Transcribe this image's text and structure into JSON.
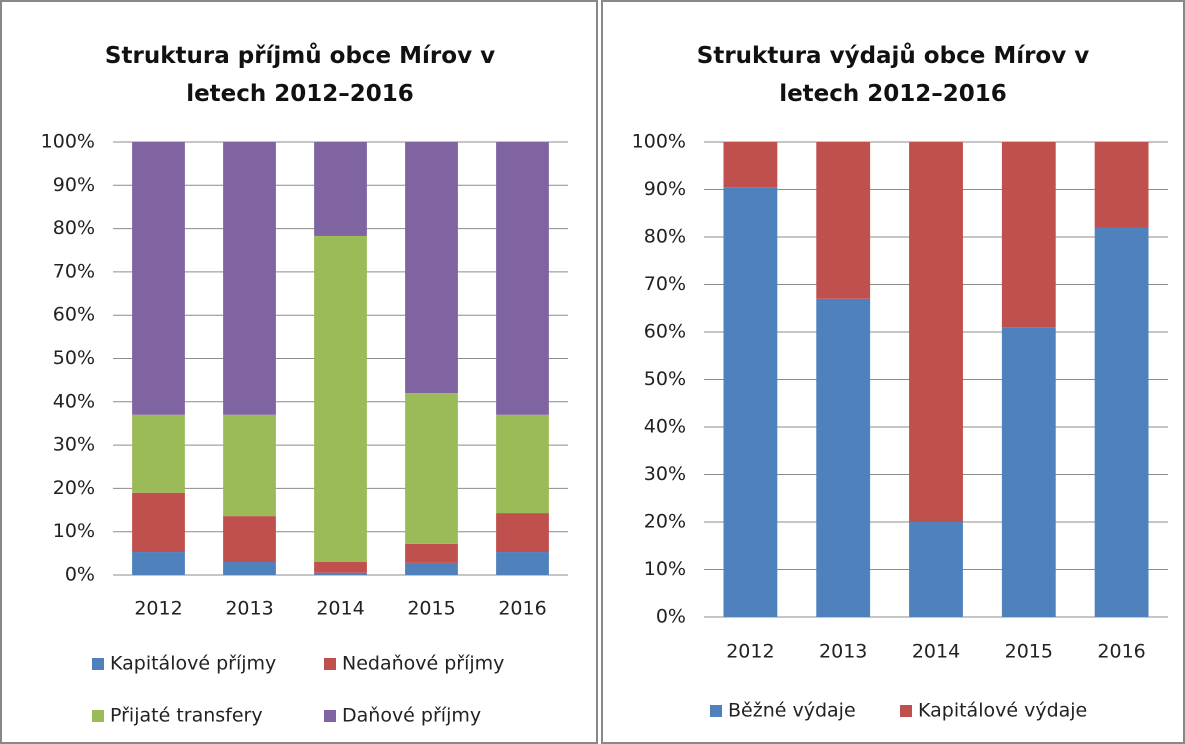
{
  "chart_data": [
    {
      "type": "stacked_bar",
      "title": "Struktura příjmů obce Mírov v letech 2012–2016",
      "categories": [
        "2012",
        "2013",
        "2014",
        "2015",
        "2016"
      ],
      "series": [
        {
          "name": "Kapitálové příjmy",
          "color": "#4f81bd",
          "values": [
            5.3,
            3,
            0.5,
            2.8,
            5.3
          ]
        },
        {
          "name": "Nedaňové příjmy",
          "color": "#c0504d",
          "values": [
            13.7,
            10.6,
            2.5,
            4.4,
            9
          ]
        },
        {
          "name": "Přijaté transfery",
          "color": "#9bbb59",
          "values": [
            18,
            23.4,
            75.3,
            34.8,
            22.7
          ]
        },
        {
          "name": "Daňové příjmy",
          "color": "#8064a2",
          "values": [
            63,
            63,
            21.7,
            58,
            63
          ]
        }
      ],
      "ylim": [
        0,
        100
      ],
      "yticks": [
        {
          "value": 0,
          "label": "0%"
        },
        {
          "value": 10,
          "label": "10%"
        },
        {
          "value": 20,
          "label": "20%"
        },
        {
          "value": 30,
          "label": "30%"
        },
        {
          "value": 40,
          "label": "40%"
        },
        {
          "value": 50,
          "label": "50%"
        },
        {
          "value": 60,
          "label": "60%"
        },
        {
          "value": 70,
          "label": "70%"
        },
        {
          "value": 80,
          "label": "80%"
        },
        {
          "value": 90,
          "label": "90%"
        },
        {
          "value": 100,
          "label": "100%"
        }
      ],
      "grid": true,
      "legend": "bottom"
    },
    {
      "type": "stacked_bar",
      "title": "Struktura výdajů obce Mírov v letech 2012–2016",
      "categories": [
        "2012",
        "2013",
        "2014",
        "2015",
        "2016"
      ],
      "series": [
        {
          "name": "Běžné výdaje",
          "color": "#4f81bd",
          "values": [
            90.5,
            67,
            20,
            61,
            82
          ]
        },
        {
          "name": "Kapitálové výdaje",
          "color": "#c0504d",
          "values": [
            9.5,
            33,
            80,
            39,
            18
          ]
        }
      ],
      "ylim": [
        0,
        100
      ],
      "yticks": [
        {
          "value": 0,
          "label": "0%"
        },
        {
          "value": 10,
          "label": "10%"
        },
        {
          "value": 20,
          "label": "20%"
        },
        {
          "value": 30,
          "label": "30%"
        },
        {
          "value": 40,
          "label": "40%"
        },
        {
          "value": 50,
          "label": "50%"
        },
        {
          "value": 60,
          "label": "60%"
        },
        {
          "value": 70,
          "label": "70%"
        },
        {
          "value": 80,
          "label": "80%"
        },
        {
          "value": 90,
          "label": "90%"
        },
        {
          "value": 100,
          "label": "100%"
        }
      ],
      "grid": true,
      "legend": "bottom"
    }
  ]
}
